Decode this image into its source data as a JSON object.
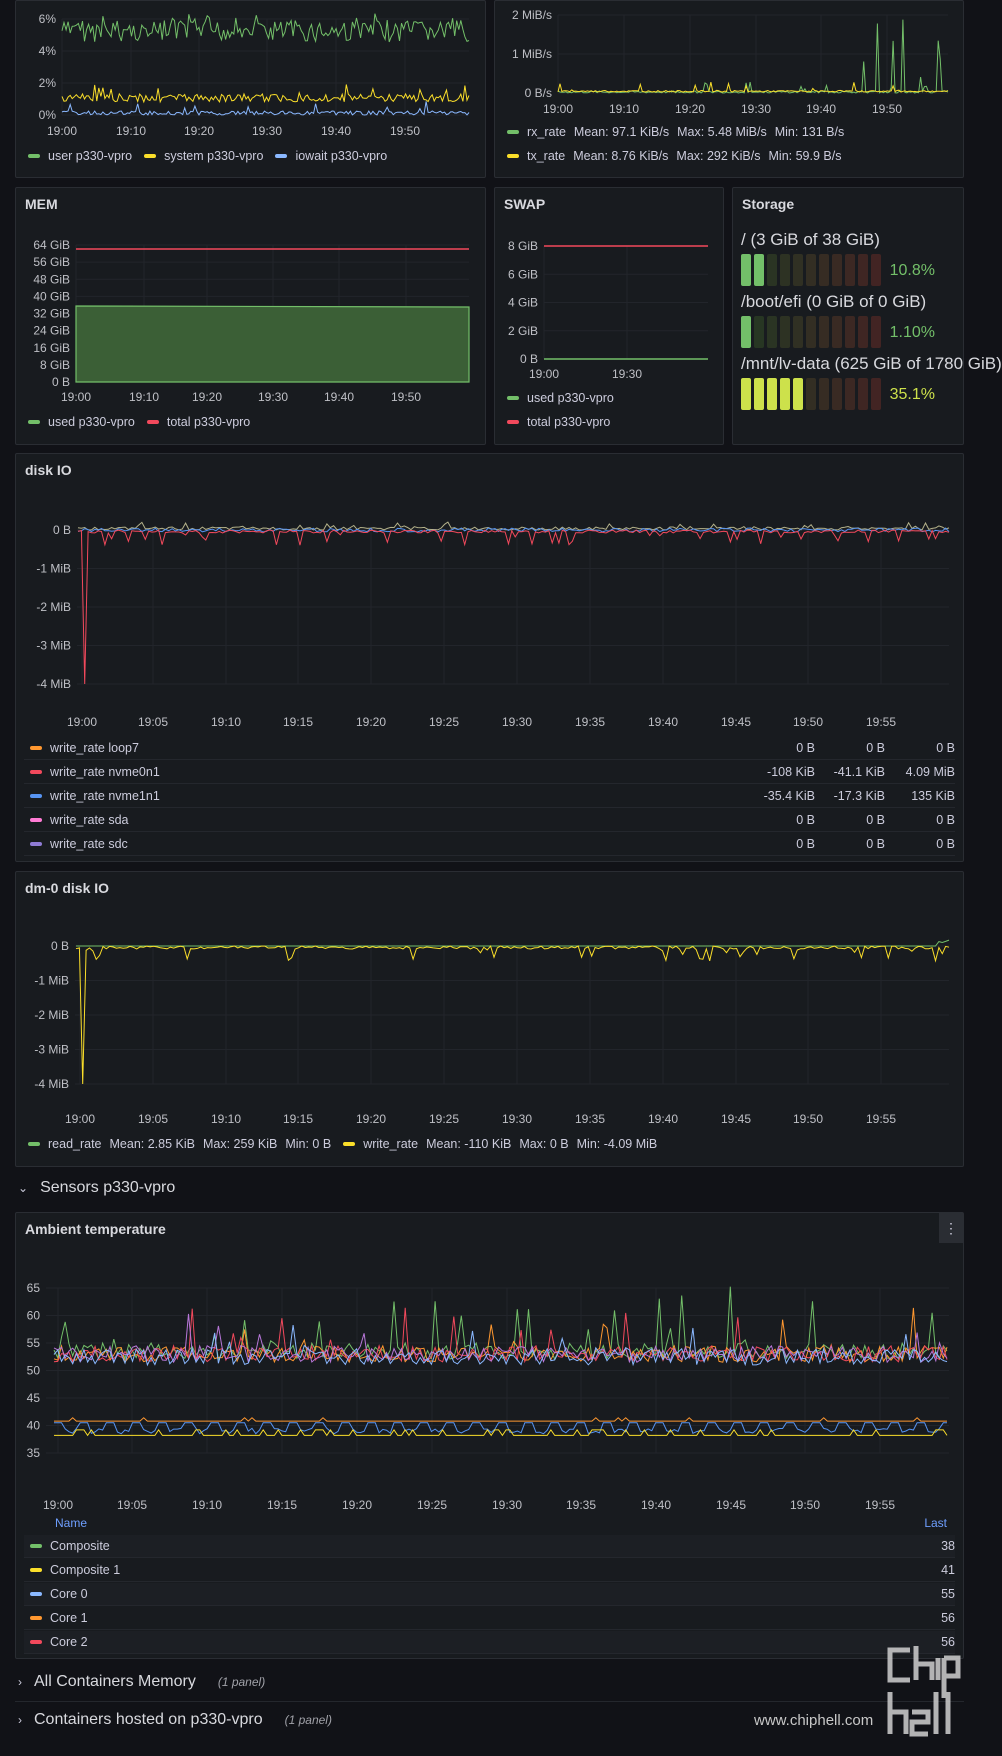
{
  "cpu": {
    "y_ticks": [
      "6%",
      "4%",
      "2%",
      "0%"
    ],
    "x_ticks": [
      "19:00",
      "19:10",
      "19:20",
      "19:30",
      "19:40",
      "19:50"
    ],
    "legend": [
      {
        "label": "user p330-vpro",
        "color": "#73bf69"
      },
      {
        "label": "system p330-vpro",
        "color": "#fade2a"
      },
      {
        "label": "iowait p330-vpro",
        "color": "#8ab8ff"
      }
    ]
  },
  "network": {
    "y_ticks": [
      "2 MiB/s",
      "1 MiB/s",
      "0 B/s"
    ],
    "x_ticks": [
      "19:00",
      "19:10",
      "19:20",
      "19:30",
      "19:40",
      "19:50"
    ],
    "legend": [
      {
        "label": "rx_rate",
        "color": "#73bf69",
        "mean": "Mean: 97.1 KiB/s",
        "max": "Max: 5.48 MiB/s",
        "min": "Min: 131 B/s"
      },
      {
        "label": "tx_rate",
        "color": "#fade2a",
        "mean": "Mean: 8.76 KiB/s",
        "max": "Max: 292 KiB/s",
        "min": "Min: 59.9 B/s"
      }
    ]
  },
  "mem": {
    "title": "MEM",
    "y_ticks": [
      "64 GiB",
      "56 GiB",
      "48 GiB",
      "40 GiB",
      "32 GiB",
      "24 GiB",
      "16 GiB",
      "8 GiB",
      "0 B"
    ],
    "x_ticks": [
      "19:00",
      "19:10",
      "19:20",
      "19:30",
      "19:40",
      "19:50"
    ],
    "legend": [
      {
        "label": "used p330-vpro",
        "color": "#73bf69"
      },
      {
        "label": "total p330-vpro",
        "color": "#f2495c"
      }
    ]
  },
  "swap": {
    "title": "SWAP",
    "y_ticks": [
      "8 GiB",
      "6 GiB",
      "4 GiB",
      "2 GiB",
      "0 B"
    ],
    "x_ticks": [
      "19:00",
      "19:30"
    ],
    "legend": [
      {
        "label": "used p330-vpro",
        "color": "#73bf69"
      },
      {
        "label": "total p330-vpro",
        "color": "#f2495c"
      }
    ]
  },
  "storage": {
    "title": "Storage",
    "items": [
      {
        "label": "/ (3 GiB of 38 GiB)",
        "pct": "10.8%",
        "value": 10.8,
        "color": "#73bf69"
      },
      {
        "label": "/boot/efi (0 GiB of 0 GiB)",
        "pct": "1.10%",
        "value": 1.1,
        "color": "#73bf69"
      },
      {
        "label": "/mnt/lv-data (625 GiB of 1780 GiB)",
        "pct": "35.1%",
        "value": 35.1,
        "color": "#cde14b"
      }
    ]
  },
  "diskio": {
    "title": "disk IO",
    "y_ticks": [
      "0 B",
      "-1 MiB",
      "-2 MiB",
      "-3 MiB",
      "-4 MiB"
    ],
    "x_ticks": [
      "19:00",
      "19:05",
      "19:10",
      "19:15",
      "19:20",
      "19:25",
      "19:30",
      "19:35",
      "19:40",
      "19:45",
      "19:50",
      "19:55"
    ],
    "rows": [
      {
        "label": "write_rate loop7",
        "color": "#ff9830",
        "a": "0 B",
        "b": "0 B",
        "c": "0 B"
      },
      {
        "label": "write_rate nvme0n1",
        "color": "#f2495c",
        "a": "-108 KiB",
        "b": "-41.1 KiB",
        "c": "4.09 MiB"
      },
      {
        "label": "write_rate nvme1n1",
        "color": "#5794f2",
        "a": "-35.4 KiB",
        "b": "-17.3 KiB",
        "c": "135 KiB"
      },
      {
        "label": "write_rate sda",
        "color": "#ff7bd5",
        "a": "0 B",
        "b": "0 B",
        "c": "0 B"
      },
      {
        "label": "write_rate sdc",
        "color": "#8f7bd5",
        "a": "0 B",
        "b": "0 B",
        "c": "0 B"
      }
    ]
  },
  "dm0": {
    "title": "dm-0 disk IO",
    "y_ticks": [
      "0 B",
      "-1 MiB",
      "-2 MiB",
      "-3 MiB",
      "-4 MiB"
    ],
    "x_ticks": [
      "19:00",
      "19:05",
      "19:10",
      "19:15",
      "19:20",
      "19:25",
      "19:30",
      "19:35",
      "19:40",
      "19:45",
      "19:50",
      "19:55"
    ],
    "legend": [
      {
        "label": "read_rate",
        "color": "#73bf69",
        "mean": "Mean: 2.85 KiB",
        "max": "Max: 259 KiB",
        "min": "Min: 0 B"
      },
      {
        "label": "write_rate",
        "color": "#fade2a",
        "mean": "Mean: -110 KiB",
        "max": "Max: 0 B",
        "min": "Min: -4.09 MiB"
      }
    ]
  },
  "sensors_row": {
    "label": "Sensors p330-vpro"
  },
  "ambient": {
    "title": "Ambient temperature",
    "menu": "⋮",
    "y_ticks": [
      "65",
      "60",
      "55",
      "50",
      "45",
      "40",
      "35"
    ],
    "x_ticks": [
      "19:00",
      "19:05",
      "19:10",
      "19:15",
      "19:20",
      "19:25",
      "19:30",
      "19:35",
      "19:40",
      "19:45",
      "19:50",
      "19:55"
    ],
    "col_name": "Name",
    "col_last": "Last",
    "rows": [
      {
        "label": "Composite",
        "color": "#73bf69",
        "last": "38"
      },
      {
        "label": "Composite 1",
        "color": "#fade2a",
        "last": "41"
      },
      {
        "label": "Core 0",
        "color": "#8ab8ff",
        "last": "55"
      },
      {
        "label": "Core 1",
        "color": "#ff9830",
        "last": "56"
      },
      {
        "label": "Core 2",
        "color": "#f2495c",
        "last": "56"
      }
    ]
  },
  "rows_collapsed": [
    {
      "label": "All Containers Memory",
      "count": "(1 panel)"
    },
    {
      "label": "Containers hosted on p330-vpro",
      "count": "(1 panel)"
    }
  ],
  "watermark": {
    "site": "www.chiphell.com",
    "logo": "chip hell"
  }
}
